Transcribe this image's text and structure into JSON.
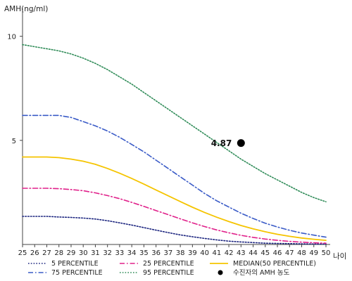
{
  "chart_data": {
    "type": "line",
    "ylabel": "AMH(ng/ml)",
    "xlabel": "나이",
    "x": [
      25,
      26,
      27,
      28,
      29,
      30,
      31,
      32,
      33,
      34,
      35,
      36,
      37,
      38,
      39,
      40,
      41,
      42,
      43,
      44,
      45,
      46,
      47,
      48,
      49,
      50
    ],
    "xlim": [
      25,
      50
    ],
    "ylim": [
      0,
      11
    ],
    "yticks": [
      5,
      10
    ],
    "grid": false,
    "legend_position": "bottom",
    "series": [
      {
        "name": "5 PERCENTILE",
        "color": "#1a237e",
        "dash": "dotted",
        "values": [
          1.35,
          1.35,
          1.35,
          1.32,
          1.3,
          1.27,
          1.22,
          1.14,
          1.04,
          0.93,
          0.81,
          0.69,
          0.57,
          0.46,
          0.37,
          0.29,
          0.22,
          0.16,
          0.12,
          0.09,
          0.06,
          0.05,
          0.04,
          0.03,
          0.02,
          0.02
        ]
      },
      {
        "name": "75 PERCENTILE",
        "color": "#3a5bc7",
        "dash": "dashdot",
        "values": [
          6.2,
          6.2,
          6.2,
          6.2,
          6.1,
          5.9,
          5.7,
          5.45,
          5.15,
          4.8,
          4.45,
          4.05,
          3.65,
          3.25,
          2.85,
          2.45,
          2.1,
          1.8,
          1.5,
          1.25,
          1.02,
          0.84,
          0.68,
          0.55,
          0.45,
          0.35
        ]
      },
      {
        "name": "25 PERCENTILE",
        "color": "#e0208a",
        "dash": "dashdot",
        "values": [
          2.7,
          2.7,
          2.7,
          2.68,
          2.64,
          2.58,
          2.48,
          2.35,
          2.2,
          2.02,
          1.83,
          1.63,
          1.43,
          1.23,
          1.04,
          0.86,
          0.7,
          0.56,
          0.44,
          0.34,
          0.26,
          0.2,
          0.15,
          0.11,
          0.08,
          0.06
        ]
      },
      {
        "name": "95 PERCENTILE",
        "color": "#2e8b57",
        "dash": "dotted",
        "values": [
          9.6,
          9.5,
          9.4,
          9.3,
          9.15,
          8.95,
          8.7,
          8.4,
          8.05,
          7.7,
          7.3,
          6.9,
          6.5,
          6.1,
          5.7,
          5.3,
          4.9,
          4.5,
          4.1,
          3.75,
          3.4,
          3.1,
          2.8,
          2.5,
          2.25,
          2.05
        ]
      },
      {
        "name": "MEDIAN(50 PERCENTILE)",
        "color": "#f5c400",
        "dash": "solid",
        "values": [
          4.2,
          4.2,
          4.2,
          4.17,
          4.1,
          4.0,
          3.85,
          3.65,
          3.42,
          3.17,
          2.9,
          2.62,
          2.34,
          2.06,
          1.79,
          1.54,
          1.31,
          1.1,
          0.91,
          0.75,
          0.61,
          0.49,
          0.39,
          0.31,
          0.25,
          0.2
        ]
      }
    ],
    "points": [
      {
        "name": "수진자의 AMH 농도",
        "x": 43,
        "y": 4.87,
        "label": "4.87",
        "color": "#000000"
      }
    ]
  }
}
